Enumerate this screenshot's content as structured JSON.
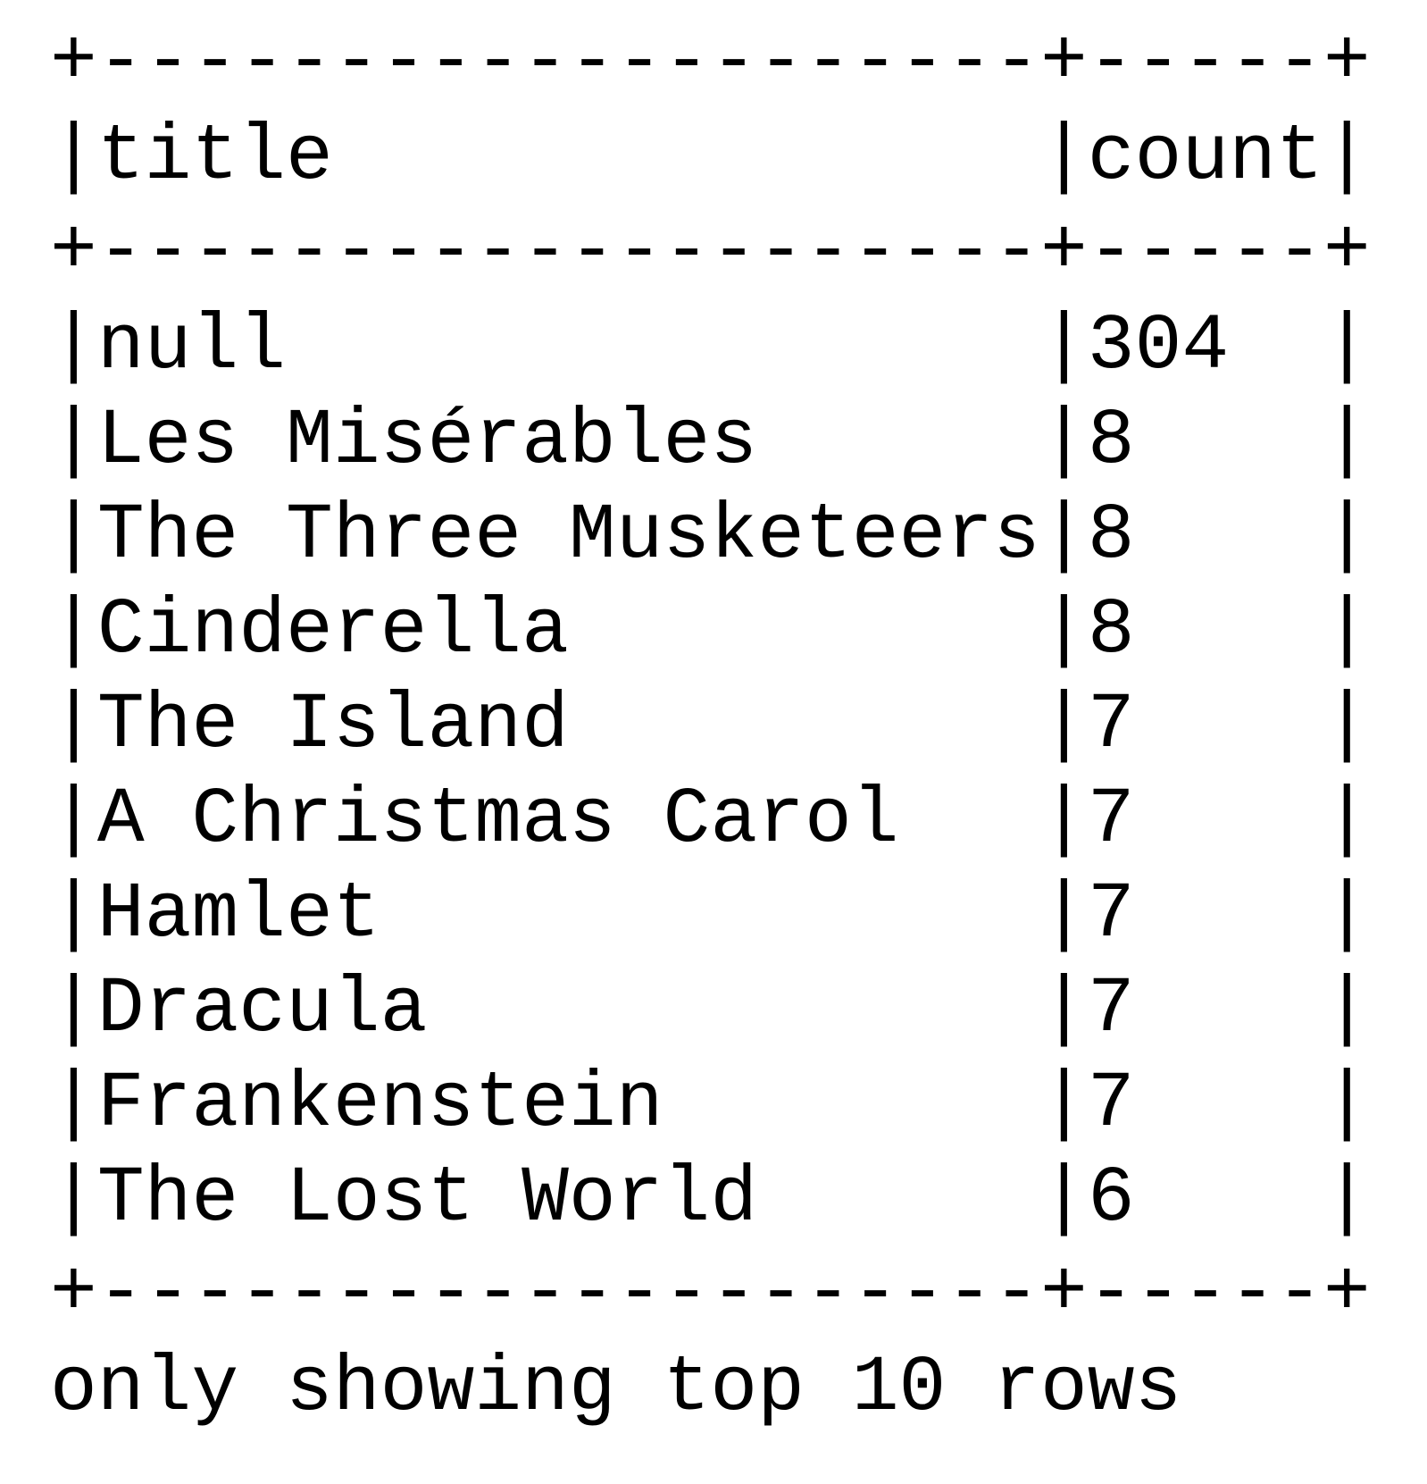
{
  "table": {
    "columns": [
      "title",
      "count"
    ],
    "rows": [
      {
        "title": "null",
        "count": "304"
      },
      {
        "title": "Les Misérables",
        "count": "8"
      },
      {
        "title": "The Three Musketeers",
        "count": "8"
      },
      {
        "title": "Cinderella",
        "count": "8"
      },
      {
        "title": "The Island",
        "count": "7"
      },
      {
        "title": "A Christmas Carol",
        "count": "7"
      },
      {
        "title": "Hamlet",
        "count": "7"
      },
      {
        "title": "Dracula",
        "count": "7"
      },
      {
        "title": "Frankenstein",
        "count": "7"
      },
      {
        "title": "The Lost World",
        "count": "6"
      }
    ],
    "footer": "only showing top 10 rows"
  }
}
